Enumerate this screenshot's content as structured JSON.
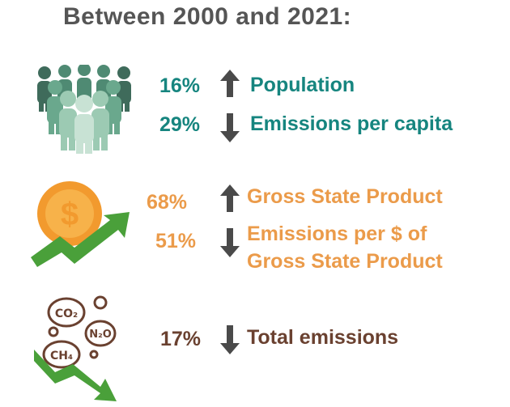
{
  "title": "Between 2000 and 2021:",
  "colors": {
    "title": "#555555",
    "teal": "#16857f",
    "orange": "#eb9b4a",
    "brown": "#6a4130",
    "arrow": "#4a4a4a",
    "green": "#4aa03a"
  },
  "rows": [
    {
      "pct": "16%",
      "direction": "up",
      "label": "Population"
    },
    {
      "pct": "29%",
      "direction": "down",
      "label": "Emissions per capita"
    },
    {
      "pct": "68%",
      "direction": "up",
      "label": "Gross State Product"
    },
    {
      "pct": "51%",
      "direction": "down",
      "label_line1": "Emissions per $ of",
      "label_line2": "Gross State Product"
    },
    {
      "pct": "17%",
      "direction": "down",
      "label": "Total emissions"
    }
  ],
  "icons": {
    "people": "people-crowd-icon",
    "coin": "dollar-coin-growth-icon",
    "emissions": "greenhouse-gas-bubbles-icon"
  },
  "gas_labels": [
    "CO₂",
    "N₂O",
    "CH₄"
  ]
}
